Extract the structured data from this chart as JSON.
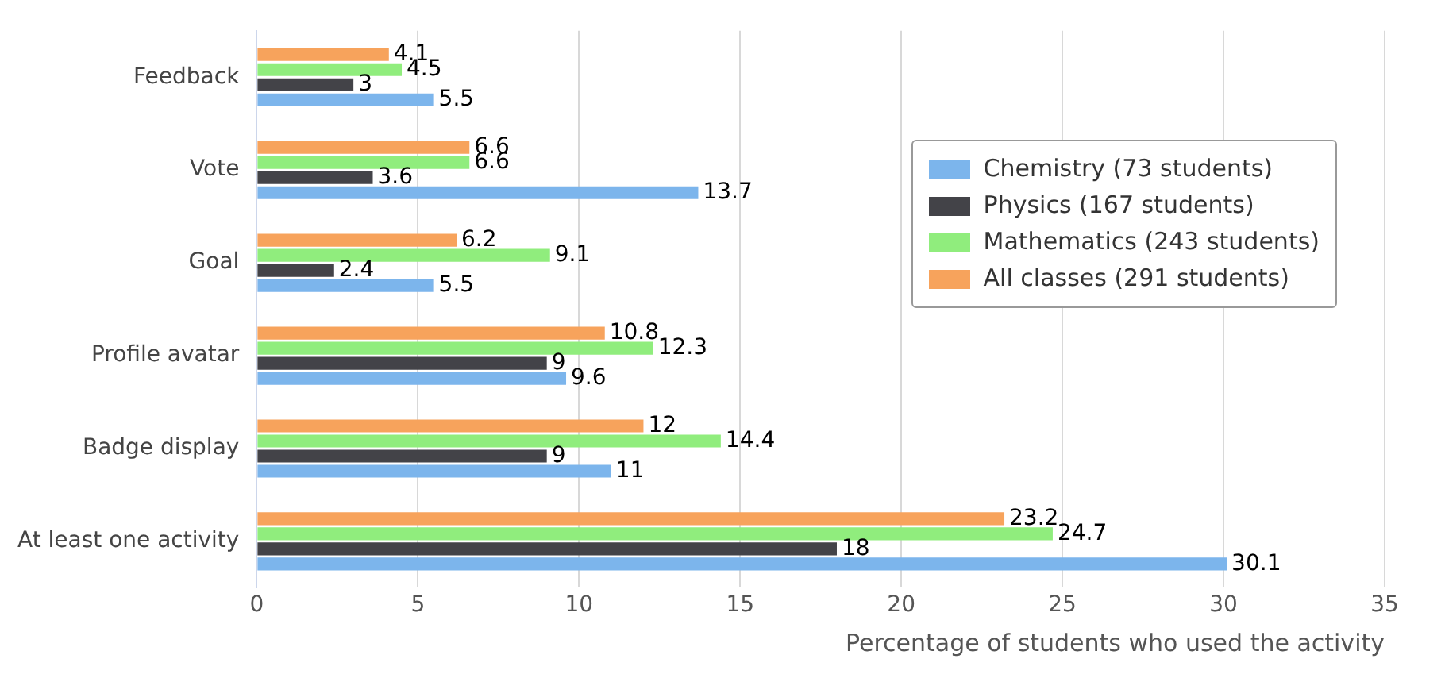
{
  "chart_data": {
    "type": "bar",
    "orientation": "horizontal",
    "xlabel": "Percentage of students who used the activity",
    "categories": [
      "Feedback",
      "Vote",
      "Goal",
      "Profile avatar",
      "Badge display",
      "At least one activity"
    ],
    "series": [
      {
        "name": "Chemistry (73 students)",
        "color": "#7cb5ec",
        "values": [
          5.5,
          13.7,
          5.5,
          9.6,
          11,
          30.1
        ]
      },
      {
        "name": "Physics (167 students)",
        "color": "#434348",
        "values": [
          3,
          3.6,
          2.4,
          9,
          9,
          18
        ]
      },
      {
        "name": "Mathematics (243 students)",
        "color": "#90ed7d",
        "values": [
          4.5,
          6.6,
          9.1,
          12.3,
          14.4,
          24.7
        ]
      },
      {
        "name": "All classes (291 students)",
        "color": "#f7a35c",
        "values": [
          4.1,
          6.6,
          6.2,
          10.8,
          12,
          23.2
        ]
      }
    ],
    "xlim": [
      0,
      35
    ],
    "xticks": [
      0,
      5,
      10,
      15,
      20,
      25,
      30,
      35
    ],
    "grid": "x",
    "legend": "top right",
    "data_labels": true
  }
}
